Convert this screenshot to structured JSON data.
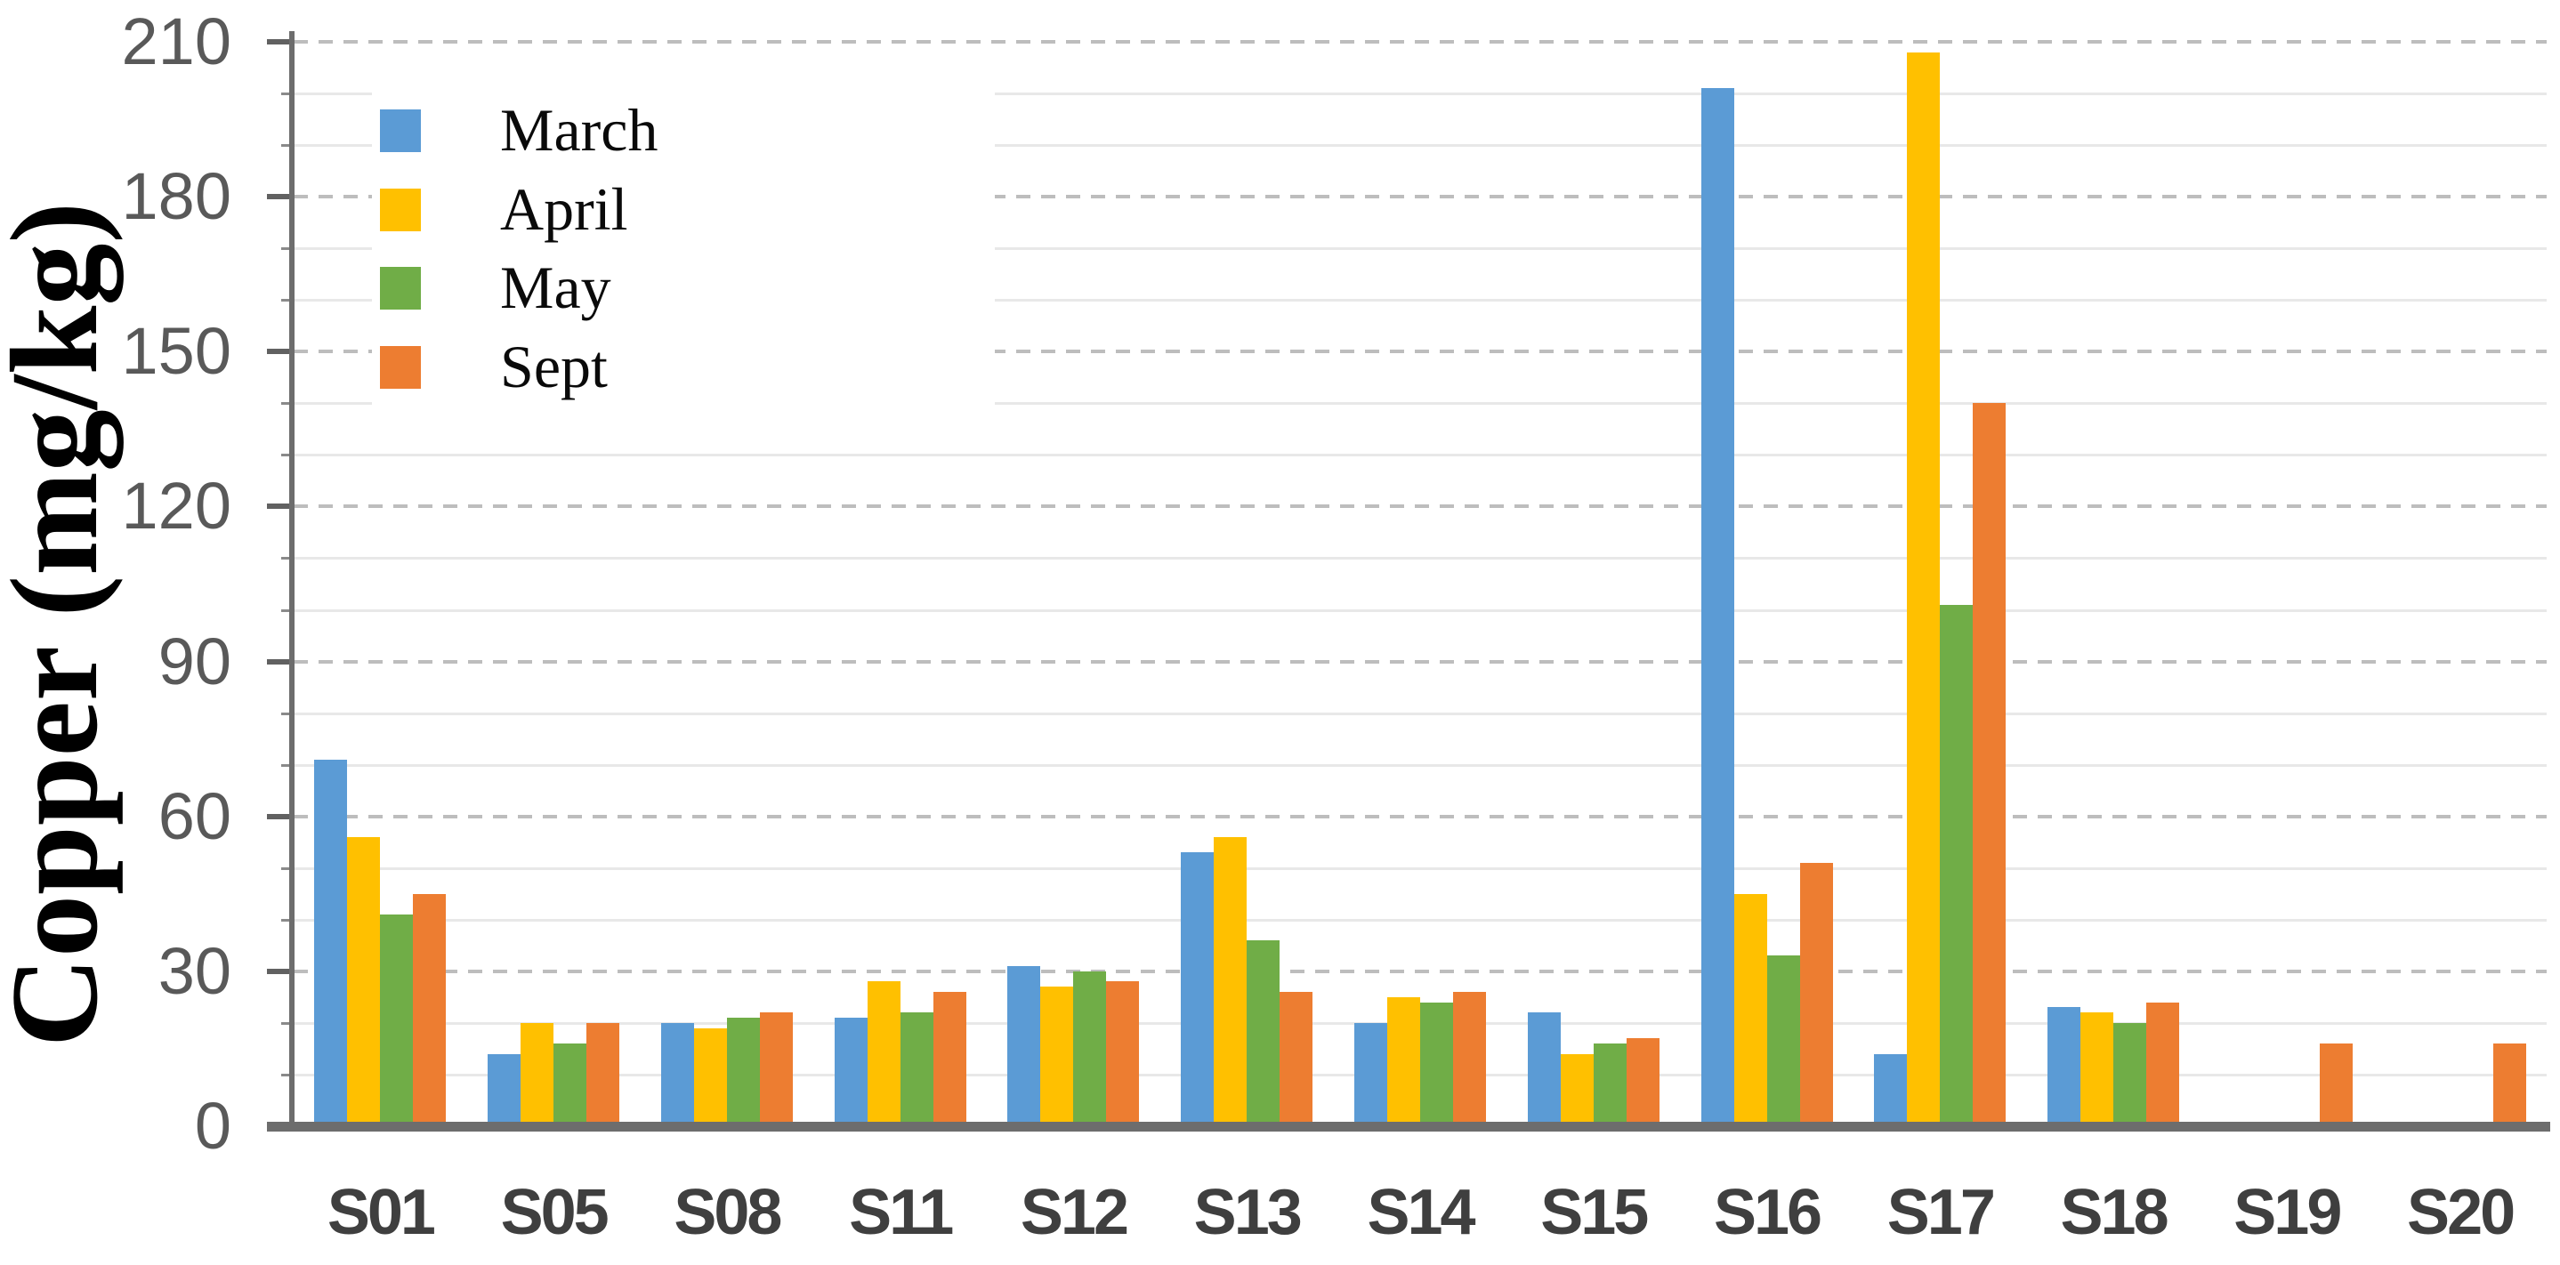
{
  "chart_data": {
    "type": "bar",
    "title": "",
    "ylabel": "Copper (mg/kg)",
    "xlabel": "",
    "categories": [
      "S01",
      "S05",
      "S08",
      "S11",
      "S12",
      "S13",
      "S14",
      "S15",
      "S16",
      "S17",
      "S18",
      "S19",
      "S20"
    ],
    "series": [
      {
        "name": "March",
        "color": "#5B9BD5",
        "values": [
          71,
          14,
          20,
          21,
          31,
          53,
          20,
          22,
          201,
          14,
          23,
          0,
          0
        ]
      },
      {
        "name": "April",
        "color": "#FFC000",
        "values": [
          56,
          20,
          19,
          28,
          27,
          56,
          25,
          14,
          45,
          208,
          22,
          0,
          0
        ]
      },
      {
        "name": "May",
        "color": "#70AD47",
        "values": [
          41,
          16,
          21,
          22,
          30,
          36,
          24,
          16,
          33,
          101,
          20,
          0,
          0
        ]
      },
      {
        "name": "Sept",
        "color": "#ED7D31",
        "values": [
          45,
          20,
          22,
          26,
          28,
          26,
          26,
          17,
          51,
          140,
          24,
          16,
          16
        ]
      }
    ],
    "ylim": [
      0,
      210
    ],
    "ytick_interval": 30,
    "yminor_interval": 10,
    "yticks": [
      "0",
      "30",
      "60",
      "90",
      "120",
      "150",
      "180",
      "210"
    ],
    "grid": "horizontal: major dashed gray every 30, minor light gray every 10",
    "legend_position": "inside top-left, vertical list"
  },
  "colors": {
    "background": "#FFFFFF",
    "axis": "#6D6D6D",
    "grid_major": "#BDBDBD",
    "grid_minor": "#E8E8E8",
    "y_tick_label": "#595959",
    "x_tick_label": "#3F3F3F",
    "legend_text": "#0A0A0A",
    "march": "#5B9BD5",
    "april": "#FFC000",
    "may": "#70AD47",
    "sept": "#ED7D31"
  }
}
